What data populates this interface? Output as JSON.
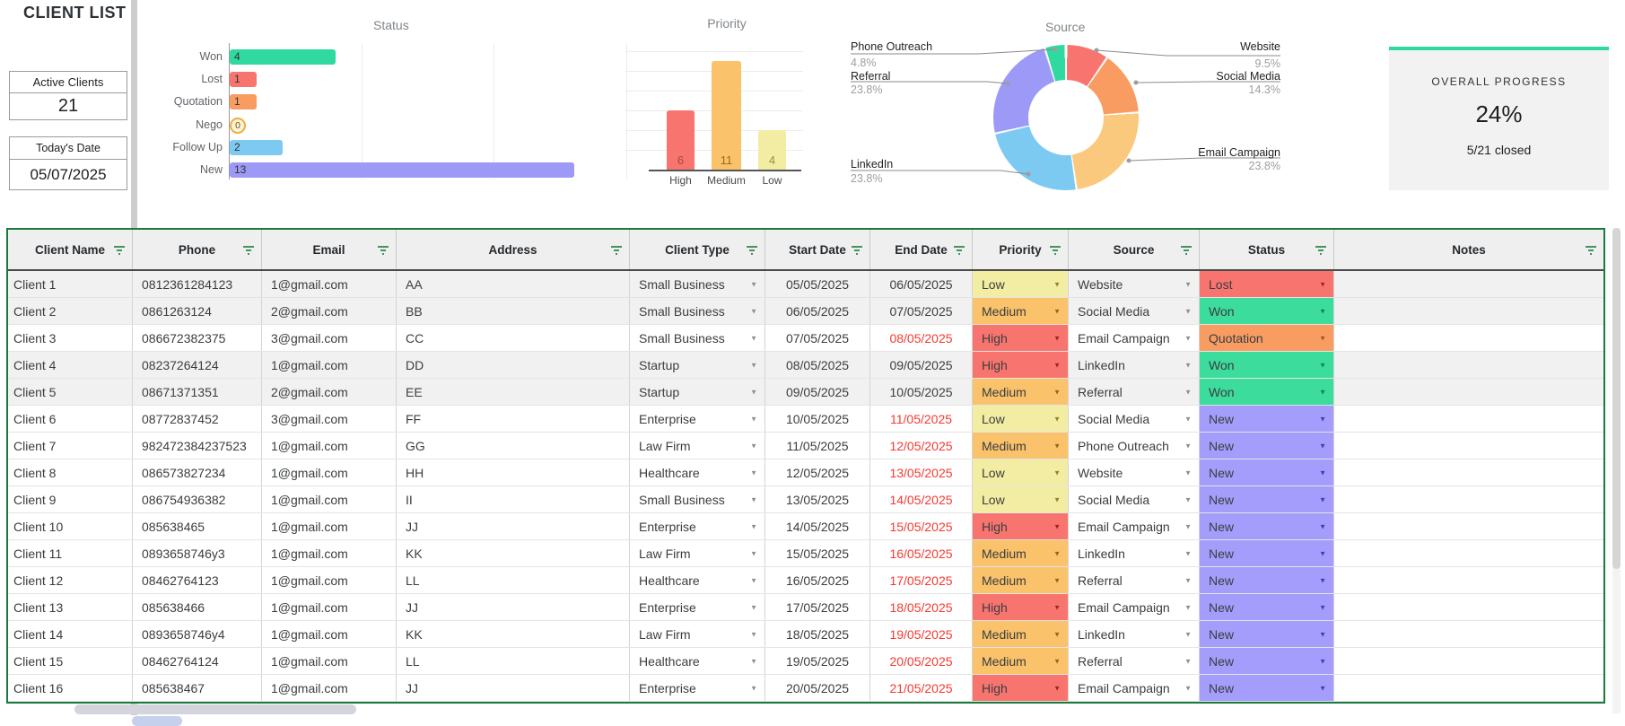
{
  "page_title": "CLIENT LIST",
  "summary": {
    "active_clients_label": "Active Clients",
    "active_clients_value": "21",
    "date_label": "Today's Date",
    "date_value": "05/07/2025"
  },
  "progress_card": {
    "title": "OVERALL PROGRESS",
    "percent": "24%",
    "detail": "5/21 closed"
  },
  "chart_data": [
    {
      "type": "bar",
      "orientation": "horizontal",
      "title": "Status",
      "categories": [
        "Won",
        "Lost",
        "Quotation",
        "Nego",
        "Follow Up",
        "New"
      ],
      "values": [
        4,
        1,
        1,
        0,
        2,
        13
      ],
      "colors": [
        "#2fd9a0",
        "#f8756f",
        "#f89c62",
        "#f0ad3e",
        "#7cc9f2",
        "#9d99f7"
      ],
      "xlim": [
        0,
        15
      ],
      "gridlines": [
        5,
        10,
        15
      ]
    },
    {
      "type": "bar",
      "orientation": "vertical",
      "title": "Priority",
      "categories": [
        "High",
        "Medium",
        "Low"
      ],
      "values": [
        6,
        11,
        4
      ],
      "colors": [
        "#f8756f",
        "#fac26b",
        "#f3eda3"
      ],
      "value_label_colors": [
        "#a8483f",
        "#9b6a1d",
        "#98912f"
      ],
      "ylim": [
        0,
        12
      ]
    },
    {
      "type": "pie",
      "style": "donut",
      "title": "Source",
      "labels": [
        "Website",
        "Social Media",
        "Email Campaign",
        "LinkedIn",
        "Referral",
        "Phone Outreach"
      ],
      "values_pct": [
        9.5,
        14.3,
        23.8,
        23.8,
        23.8,
        4.8
      ],
      "colors": [
        "#f8756f",
        "#f89c62",
        "#fbc97e",
        "#7cc9f2",
        "#9d99f7",
        "#2fd9a0"
      ]
    }
  ],
  "table": {
    "columns": [
      "Client Name",
      "Phone",
      "Email",
      "Address",
      "Client Type",
      "Start Date",
      "End Date",
      "Priority",
      "Source",
      "Status",
      "Notes"
    ],
    "colors": {
      "border_green": "#1b7a3b",
      "closed_row_bg": "#f1f1f1",
      "overdue_date": "#f43a30",
      "priority_bg": {
        "Low": "#f3eda3",
        "Medium": "#fac26b",
        "High": "#f8756f"
      },
      "status_bg": {
        "Lost": "#f8756f",
        "Won": "#3cdc9d",
        "Quotation": "#f89c62",
        "New": "#a49dfb"
      },
      "dropdown_dark": {
        "Low": "#90852a",
        "Medium": "#8f6a16",
        "High": "#a12420",
        "Lost": "#a12420",
        "Won": "#0e7f52",
        "Quotation": "#a3541c",
        "New": "#4038c0"
      },
      "dropdown_gray": "#8f8f8f"
    },
    "rows": [
      {
        "name": "Client 1",
        "phone": "0812361284123",
        "email": "1@gmail.com",
        "address": "AA",
        "type": "Small Business",
        "start": "05/05/2025",
        "end": "06/05/2025",
        "end_overdue": false,
        "priority": "Low",
        "source": "Website",
        "status": "Lost",
        "notes": "",
        "closed": true
      },
      {
        "name": "Client 2",
        "phone": "0861263124",
        "email": "2@gmail.com",
        "address": "BB",
        "type": "Small Business",
        "start": "06/05/2025",
        "end": "07/05/2025",
        "end_overdue": false,
        "priority": "Medium",
        "source": "Social Media",
        "status": "Won",
        "notes": "",
        "closed": true
      },
      {
        "name": "Client 3",
        "phone": "086672382375",
        "email": "3@gmail.com",
        "address": "CC",
        "type": "Small Business",
        "start": "07/05/2025",
        "end": "08/05/2025",
        "end_overdue": true,
        "priority": "High",
        "source": "Email Campaign",
        "status": "Quotation",
        "notes": "",
        "closed": false
      },
      {
        "name": "Client 4",
        "phone": "08237264124",
        "email": "1@gmail.com",
        "address": "DD",
        "type": "Startup",
        "start": "08/05/2025",
        "end": "09/05/2025",
        "end_overdue": false,
        "priority": "High",
        "source": "LinkedIn",
        "status": "Won",
        "notes": "",
        "closed": true
      },
      {
        "name": "Client 5",
        "phone": "08671371351",
        "email": "2@gmail.com",
        "address": "EE",
        "type": "Startup",
        "start": "09/05/2025",
        "end": "10/05/2025",
        "end_overdue": false,
        "priority": "Medium",
        "source": "Referral",
        "status": "Won",
        "notes": "",
        "closed": true
      },
      {
        "name": "Client 6",
        "phone": "08772837452",
        "email": "3@gmail.com",
        "address": "FF",
        "type": "Enterprise",
        "start": "10/05/2025",
        "end": "11/05/2025",
        "end_overdue": true,
        "priority": "Low",
        "source": "Social Media",
        "status": "New",
        "notes": "",
        "closed": false
      },
      {
        "name": "Client 7",
        "phone": "982472384237523",
        "email": "1@gmail.com",
        "address": "GG",
        "type": "Law Firm",
        "start": "11/05/2025",
        "end": "12/05/2025",
        "end_overdue": true,
        "priority": "Medium",
        "source": "Phone Outreach",
        "status": "New",
        "notes": "",
        "closed": false
      },
      {
        "name": "Client 8",
        "phone": "086573827234",
        "email": "1@gmail.com",
        "address": "HH",
        "type": "Healthcare",
        "start": "12/05/2025",
        "end": "13/05/2025",
        "end_overdue": true,
        "priority": "Low",
        "source": "Website",
        "status": "New",
        "notes": "",
        "closed": false
      },
      {
        "name": "Client 9",
        "phone": "086754936382",
        "email": "1@gmail.com",
        "address": "II",
        "type": "Small Business",
        "start": "13/05/2025",
        "end": "14/05/2025",
        "end_overdue": true,
        "priority": "Low",
        "source": "Social Media",
        "status": "New",
        "notes": "",
        "closed": false
      },
      {
        "name": "Client 10",
        "phone": "085638465",
        "email": "1@gmail.com",
        "address": "JJ",
        "type": "Enterprise",
        "start": "14/05/2025",
        "end": "15/05/2025",
        "end_overdue": true,
        "priority": "High",
        "source": "Email Campaign",
        "status": "New",
        "notes": "",
        "closed": false
      },
      {
        "name": "Client 11",
        "phone": "0893658746y3",
        "email": "1@gmail.com",
        "address": "KK",
        "type": "Law Firm",
        "start": "15/05/2025",
        "end": "16/05/2025",
        "end_overdue": true,
        "priority": "Medium",
        "source": "LinkedIn",
        "status": "New",
        "notes": "",
        "closed": false
      },
      {
        "name": "Client 12",
        "phone": "08462764123",
        "email": "1@gmail.com",
        "address": "LL",
        "type": "Healthcare",
        "start": "16/05/2025",
        "end": "17/05/2025",
        "end_overdue": true,
        "priority": "Medium",
        "source": "Referral",
        "status": "New",
        "notes": "",
        "closed": false
      },
      {
        "name": "Client 13",
        "phone": "085638466",
        "email": "1@gmail.com",
        "address": "JJ",
        "type": "Enterprise",
        "start": "17/05/2025",
        "end": "18/05/2025",
        "end_overdue": true,
        "priority": "High",
        "source": "Email Campaign",
        "status": "New",
        "notes": "",
        "closed": false
      },
      {
        "name": "Client 14",
        "phone": "0893658746y4",
        "email": "1@gmail.com",
        "address": "KK",
        "type": "Law Firm",
        "start": "18/05/2025",
        "end": "19/05/2025",
        "end_overdue": true,
        "priority": "Medium",
        "source": "LinkedIn",
        "status": "New",
        "notes": "",
        "closed": false
      },
      {
        "name": "Client 15",
        "phone": "08462764124",
        "email": "1@gmail.com",
        "address": "LL",
        "type": "Healthcare",
        "start": "19/05/2025",
        "end": "20/05/2025",
        "end_overdue": true,
        "priority": "Medium",
        "source": "Referral",
        "status": "New",
        "notes": "",
        "closed": false
      },
      {
        "name": "Client 16",
        "phone": "085638467",
        "email": "1@gmail.com",
        "address": "JJ",
        "type": "Enterprise",
        "start": "20/05/2025",
        "end": "21/05/2025",
        "end_overdue": true,
        "priority": "High",
        "source": "Email Campaign",
        "status": "New",
        "notes": "",
        "closed": false
      }
    ]
  }
}
